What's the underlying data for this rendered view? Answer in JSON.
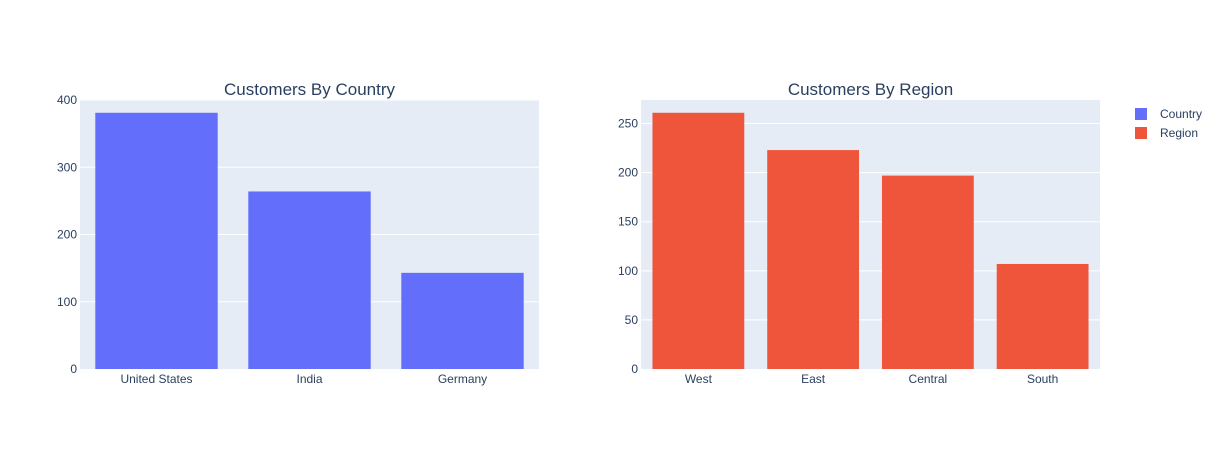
{
  "colors": {
    "plot_bg": "#e5ecf6",
    "grid": "#ffffff",
    "text": "#2a3f5f",
    "country": "#636efa",
    "region": "#ef553b"
  },
  "legend": {
    "placement": "top-right",
    "items": [
      {
        "label": "Country",
        "color": "#636efa"
      },
      {
        "label": "Region",
        "color": "#ef553b"
      }
    ]
  },
  "chart_data": [
    {
      "type": "bar",
      "title": "Customers By Country",
      "series_name": "Country",
      "categories": [
        "United States",
        "India",
        "Germany"
      ],
      "values": [
        381,
        264,
        143
      ],
      "ylim": [
        0,
        400
      ],
      "yticks": [
        0,
        100,
        200,
        300,
        400
      ],
      "xlabel": "",
      "ylabel": "",
      "grid": true,
      "color": "#636efa"
    },
    {
      "type": "bar",
      "title": "Customers By Region",
      "series_name": "Region",
      "categories": [
        "West",
        "East",
        "Central",
        "South"
      ],
      "values": [
        261,
        223,
        197,
        107
      ],
      "ylim": [
        0,
        274
      ],
      "yticks": [
        0,
        50,
        100,
        150,
        200,
        250
      ],
      "xlabel": "",
      "ylabel": "",
      "grid": true,
      "color": "#ef553b"
    }
  ]
}
